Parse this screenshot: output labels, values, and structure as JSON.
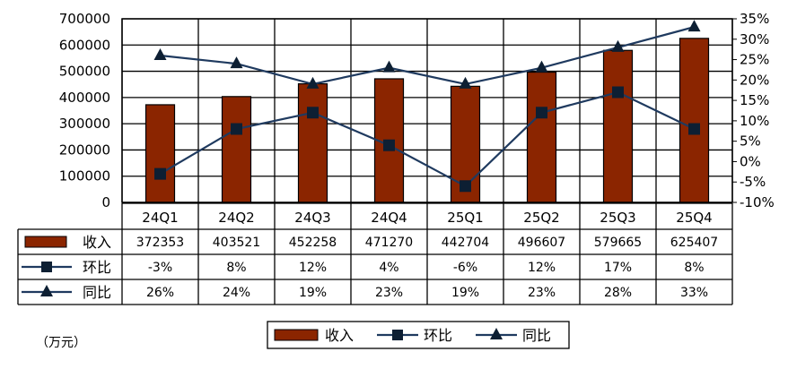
{
  "chart_data": {
    "type": "bar",
    "categories": [
      "24Q1",
      "24Q2",
      "24Q3",
      "24Q4",
      "25Q1",
      "25Q2",
      "25Q3",
      "25Q4"
    ],
    "series": [
      {
        "name": "收入",
        "type": "bar",
        "axis": "left",
        "values": [
          372353,
          403521,
          452258,
          471270,
          442704,
          496607,
          579665,
          625407
        ],
        "labels": [
          "372353",
          "403521",
          "452258",
          "471270",
          "442704",
          "496607",
          "579665",
          "625407"
        ],
        "color": "#8B2500",
        "marker": "rect"
      },
      {
        "name": "环比",
        "type": "line",
        "axis": "right",
        "values": [
          -3,
          8,
          12,
          4,
          -6,
          12,
          17,
          8
        ],
        "labels": [
          "-3%",
          "8%",
          "12%",
          "4%",
          "-6%",
          "12%",
          "17%",
          "8%"
        ],
        "color": "#1F3A5F",
        "marker": "square"
      },
      {
        "name": "同比",
        "type": "line",
        "axis": "right",
        "values": [
          26,
          24,
          19,
          23,
          19,
          23,
          28,
          33
        ],
        "labels": [
          "26%",
          "24%",
          "19%",
          "23%",
          "19%",
          "23%",
          "28%",
          "33%"
        ],
        "color": "#1F3A5F",
        "marker": "triangle"
      }
    ],
    "yleft": {
      "ylim": [
        0,
        700000
      ],
      "ticks": [
        "0",
        "100000",
        "200000",
        "300000",
        "400000",
        "500000",
        "600000",
        "700000"
      ]
    },
    "yright": {
      "ylim": [
        -10,
        35
      ],
      "ticks": [
        "-10%",
        "-5%",
        "0%",
        "5%",
        "10%",
        "15%",
        "20%",
        "25%",
        "30%",
        "35%"
      ]
    },
    "grid": true,
    "legend_position": "bottom",
    "data_table": true
  },
  "unit_note": "（万元）"
}
